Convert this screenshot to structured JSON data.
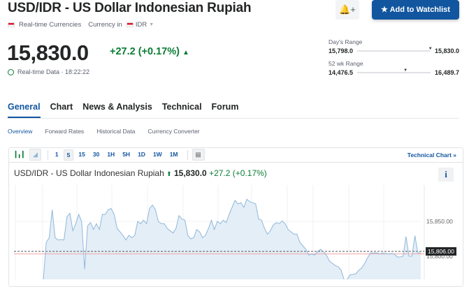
{
  "header": {
    "title": "USD/IDR - US Dollar Indonesian Rupiah",
    "bell_icon": "bell-plus-icon",
    "watchlist_label": "Add to Watchlist",
    "category": "Real-time Currencies",
    "currency_label": "Currency in",
    "currency": "IDR"
  },
  "quote": {
    "price": "15,830.0",
    "change": "+27.2 (+0.17%)",
    "time_label": "Real-time Data · 18:22:22",
    "positive_color": "#0a7d36"
  },
  "ranges": {
    "day": {
      "label": "Day's Range",
      "low": "15,798.0",
      "high": "15,830.0",
      "position": 1.0
    },
    "week52": {
      "label": "52 wk Range",
      "low": "14,476.5",
      "high": "16,489.7",
      "position": 0.65
    }
  },
  "tabs": [
    {
      "label": "General",
      "active": true
    },
    {
      "label": "Chart"
    },
    {
      "label": "News & Analysis"
    },
    {
      "label": "Technical"
    },
    {
      "label": "Forum"
    }
  ],
  "subtabs": [
    {
      "label": "Overview",
      "active": true
    },
    {
      "label": "Forward Rates"
    },
    {
      "label": "Historical Data"
    },
    {
      "label": "Currency Converter"
    }
  ],
  "toolbar": {
    "intervals": [
      "1",
      "5",
      "15",
      "30",
      "1H",
      "5H",
      "1D",
      "1W",
      "1M"
    ],
    "selected": "5",
    "technical_chart": "Technical Chart »"
  },
  "chart_title": {
    "name": "USD/IDR - US Dollar Indonesian Rupiah",
    "price": "15,830.0",
    "change": "+27.2",
    "pct": "(+0.17%)"
  },
  "chart_data": {
    "type": "area",
    "y_ticks": [
      "15,850.00",
      "15,800.00"
    ],
    "current_label": "15,806.00",
    "current": 15806,
    "reference_line": 15802.3,
    "line_color": "#8fb8da",
    "fill_color": "#e4eef7",
    "values": [
      15764.7,
      15819.3,
      15826.1,
      15867.1,
      15826.1,
      15822.7,
      15823.4,
      15822.7,
      15856.8,
      15861.9,
      15836.4,
      15846.6,
      15860.2,
      15850,
      15780.1,
      15843.2,
      15848.3,
      15838.1,
      15846.6,
      15838.1,
      15860.2,
      15860.2,
      15867.1,
      15868.8,
      15860.2,
      15839.8,
      15834.7,
      15829.5,
      15822.7,
      15829.5,
      15826.1,
      15829.5,
      15850,
      15846.6,
      15851.7,
      15846.6,
      15868.8,
      15873.9,
      15867.1,
      15850,
      15846.6,
      15846.6,
      15839.8,
      15836.4,
      15832.9,
      15839.8,
      15858.5,
      15853.4,
      15851.7,
      15829.5,
      15824.4,
      15826.1,
      15838.1,
      15834.7,
      15826.1,
      15829.5,
      15839.8,
      15851.7,
      15838.1,
      15850,
      15846.6,
      15851.7,
      15848.3,
      15860.2,
      15870.5,
      15880.7,
      15875.6,
      15877.3,
      15870.5,
      15882.4,
      15879,
      15877.3,
      15875.6,
      15853.4,
      15851.7,
      15839.8,
      15831.2,
      15836.4,
      15844.9,
      15848.3,
      15846.6,
      15850.7,
      15846.6,
      15838.1,
      15834.7,
      15831.2,
      15831.2,
      15819.3,
      15814.2,
      15809.1,
      15800.6,
      15802.3,
      15800.6,
      15805.7,
      15809.1,
      15805.7,
      15800.6,
      15792,
      15788.6,
      15785.2,
      15783.5,
      15778.4,
      15764.7,
      15764.7,
      15771.6,
      15772.3,
      15773.3,
      15778.4,
      15781.8,
      15788.6,
      15797.1,
      15804,
      15803.3,
      15804,
      15802.3,
      15803.3,
      15802.9,
      15802.3,
      15802.9,
      15802.3,
      15797.8,
      15797.8,
      15798.9,
      15827.8,
      15798.9,
      15798.9,
      15828.9,
      15804,
      15804
    ]
  }
}
